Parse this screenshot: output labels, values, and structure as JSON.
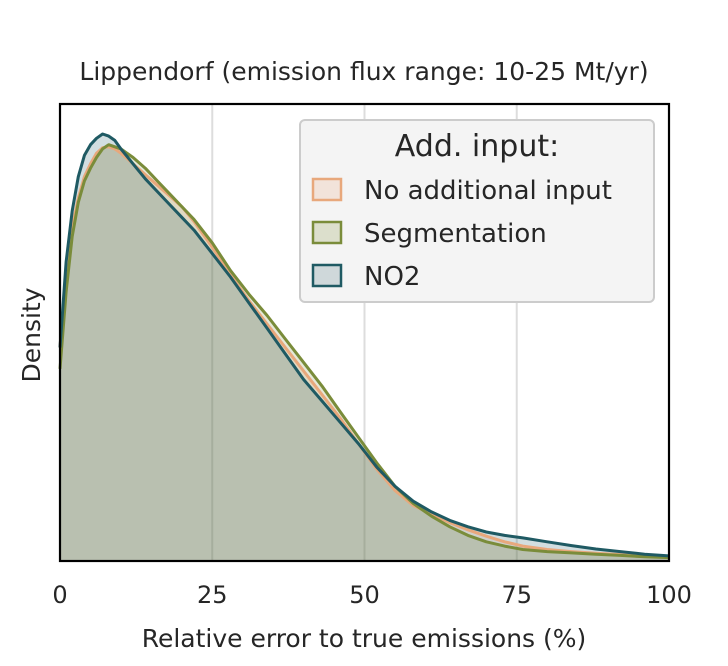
{
  "chart_data": {
    "type": "area",
    "title": "Lippendorf (emission flux range: 10-25 Mt/yr)",
    "xlabel": "Relative error to true emissions (%)",
    "ylabel": "Density",
    "xlim": [
      0,
      100
    ],
    "ylim": [
      0,
      1.0
    ],
    "xticks": [
      "0",
      "25",
      "50",
      "75",
      "100"
    ],
    "grid": "vertical",
    "legend": {
      "title": "Add. input:",
      "placement": "top-right"
    },
    "series": [
      {
        "name": "No additional input",
        "color": "#E8A87C",
        "fill": "#F2E3DA",
        "x": [
          0,
          1,
          2,
          3,
          4,
          5,
          6,
          7,
          8,
          9,
          10,
          12,
          14,
          16,
          18,
          20,
          22,
          25,
          28,
          31,
          34,
          37,
          40,
          43,
          46,
          49,
          52,
          55,
          58,
          61,
          64,
          67,
          70,
          73,
          76,
          80,
          84,
          88,
          92,
          96,
          100
        ],
        "values": [
          0.5,
          0.68,
          0.78,
          0.85,
          0.9,
          0.93,
          0.955,
          0.968,
          0.97,
          0.965,
          0.955,
          0.93,
          0.905,
          0.88,
          0.855,
          0.83,
          0.795,
          0.735,
          0.67,
          0.61,
          0.555,
          0.5,
          0.445,
          0.39,
          0.335,
          0.275,
          0.215,
          0.165,
          0.13,
          0.11,
          0.09,
          0.073,
          0.058,
          0.045,
          0.035,
          0.027,
          0.022,
          0.018,
          0.015,
          0.012,
          0.01
        ]
      },
      {
        "name": "Segmentation",
        "color": "#7A8C3A",
        "fill": "#DCDFCC",
        "x": [
          0,
          1,
          2,
          3,
          4,
          5,
          6,
          7,
          8,
          9,
          10,
          12,
          14,
          16,
          18,
          20,
          22,
          25,
          28,
          31,
          34,
          37,
          40,
          43,
          46,
          49,
          52,
          55,
          58,
          61,
          64,
          67,
          70,
          73,
          76,
          80,
          84,
          88,
          92,
          96,
          100
        ],
        "values": [
          0.45,
          0.63,
          0.76,
          0.84,
          0.89,
          0.92,
          0.945,
          0.965,
          0.975,
          0.97,
          0.965,
          0.945,
          0.92,
          0.89,
          0.86,
          0.83,
          0.8,
          0.745,
          0.68,
          0.625,
          0.575,
          0.52,
          0.465,
          0.41,
          0.35,
          0.29,
          0.23,
          0.175,
          0.135,
          0.105,
          0.08,
          0.06,
          0.045,
          0.035,
          0.027,
          0.022,
          0.019,
          0.016,
          0.013,
          0.01,
          0.008
        ]
      },
      {
        "name": "NO2",
        "color": "#1F5A63",
        "fill": "#CFD8DA",
        "x": [
          0,
          1,
          2,
          3,
          4,
          5,
          6,
          7,
          8,
          9,
          10,
          12,
          14,
          16,
          18,
          20,
          22,
          25,
          28,
          31,
          34,
          37,
          40,
          43,
          46,
          49,
          52,
          55,
          58,
          61,
          64,
          67,
          70,
          73,
          76,
          80,
          84,
          88,
          92,
          96,
          100
        ],
        "values": [
          0.5,
          0.7,
          0.82,
          0.9,
          0.95,
          0.975,
          0.99,
          1.0,
          0.995,
          0.985,
          0.965,
          0.93,
          0.895,
          0.865,
          0.835,
          0.805,
          0.775,
          0.72,
          0.665,
          0.605,
          0.545,
          0.485,
          0.425,
          0.375,
          0.325,
          0.275,
          0.22,
          0.175,
          0.14,
          0.115,
          0.095,
          0.08,
          0.068,
          0.06,
          0.054,
          0.045,
          0.036,
          0.028,
          0.022,
          0.016,
          0.012
        ]
      }
    ]
  }
}
